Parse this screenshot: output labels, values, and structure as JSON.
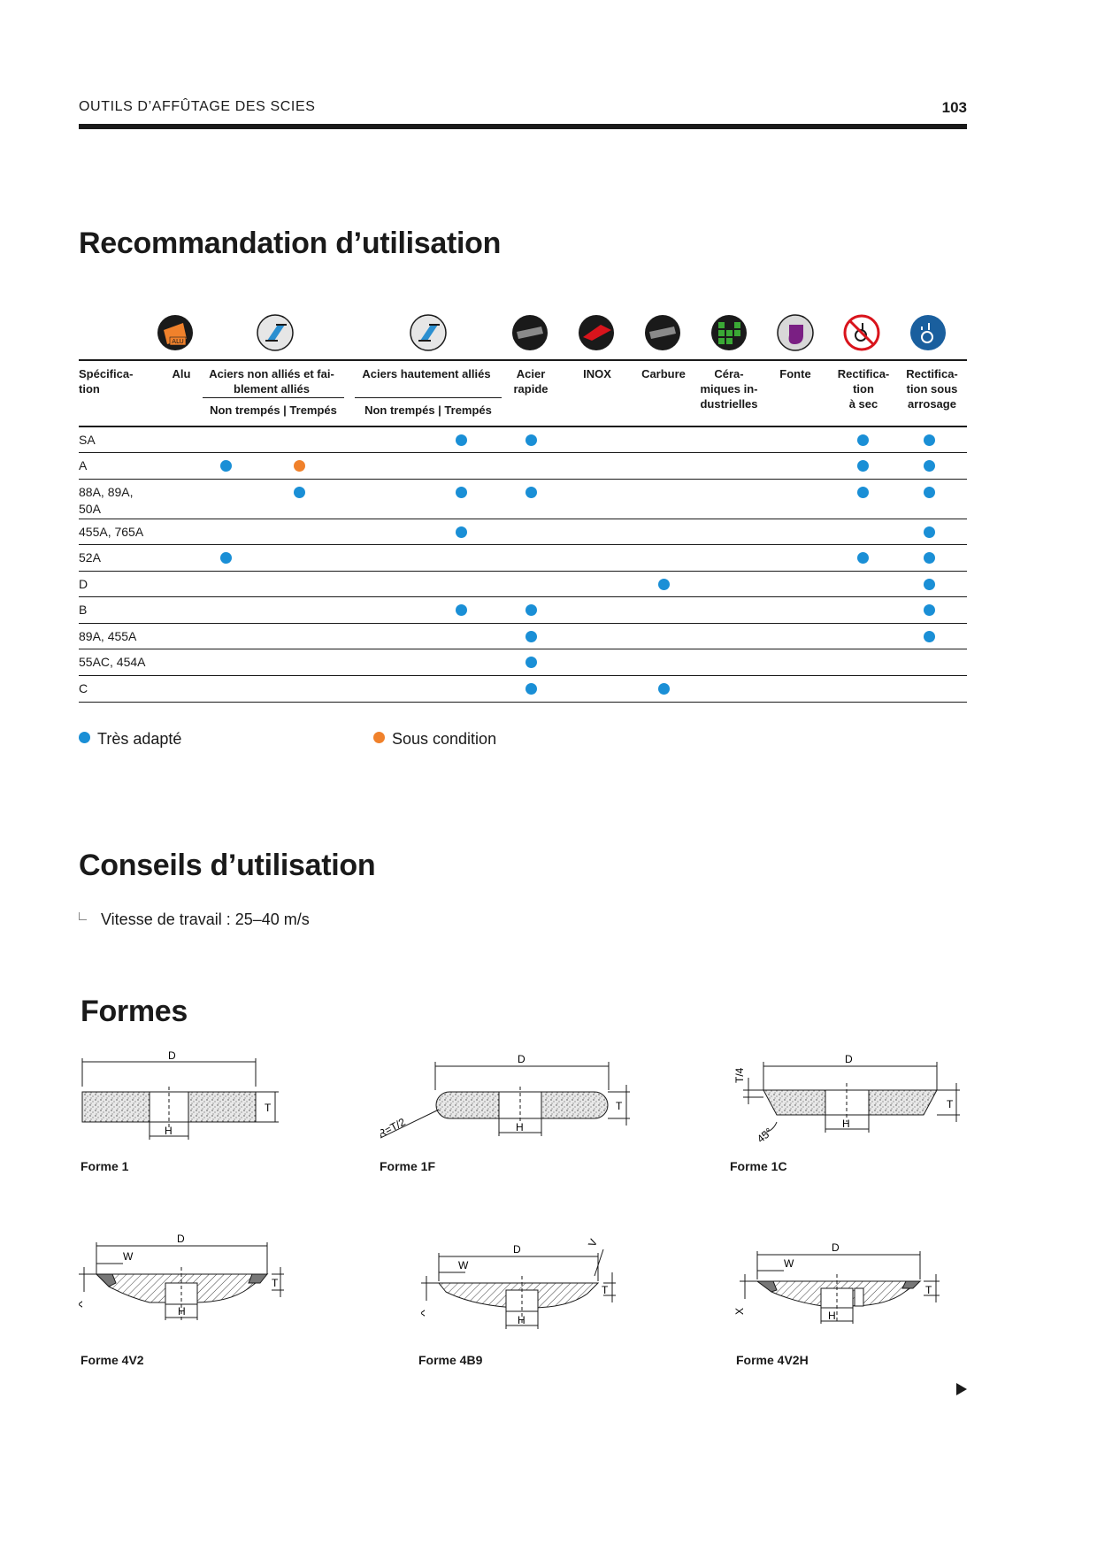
{
  "header": {
    "title": "OUTILS D’AFFÛTAGE DES SCIES",
    "page_number": "103"
  },
  "sections": {
    "recommandation": "Recommandation d’utilisation",
    "conseils": "Conseils d’utilisation",
    "formes": "Formes"
  },
  "colors": {
    "tres_adapte": "#1a8fd6",
    "sous_condition": "#f0812b"
  },
  "table": {
    "columns": [
      {
        "label": "Spécifica-\ntion",
        "icon": ""
      },
      {
        "label": "Alu",
        "icon": "alu-icon"
      },
      {
        "label": "Aciers non alliés et fai-\nblement alliés",
        "icon": "steel-beam-icon",
        "sub": "Non trempés | Trempés"
      },
      {
        "label": "Aciers hautement alliés",
        "icon": "steel-beam-icon",
        "sub": "Non trempés | Trempés"
      },
      {
        "label": "Acier\nrapide",
        "icon": "hss-blade-icon"
      },
      {
        "label": "INOX",
        "icon": "inox-icon"
      },
      {
        "label": "Carbure",
        "icon": "carbide-blade-icon"
      },
      {
        "label": "Céra-\nmiques in-\ndustrielles",
        "icon": "ceramic-tiles-icon"
      },
      {
        "label": "Fonte",
        "icon": "cast-iron-icon"
      },
      {
        "label": "Rectifica-\ntion\nà sec",
        "icon": "dry-grinding-icon"
      },
      {
        "label": "Rectifica-\ntion sous\narrosage",
        "icon": "wet-grinding-icon"
      }
    ],
    "rows": [
      {
        "spec": "SA",
        "marks": [
          [
            "hautement_non",
            "very"
          ],
          [
            "rapide",
            "very"
          ],
          [
            "sec",
            "very"
          ],
          [
            "arrosage",
            "very"
          ]
        ]
      },
      {
        "spec": "A",
        "marks": [
          [
            "nonallie_non",
            "very"
          ],
          [
            "nonallie_tr",
            "cond"
          ],
          [
            "sec",
            "very"
          ],
          [
            "arrosage",
            "very"
          ]
        ]
      },
      {
        "spec": "88A, 89A,\n50A",
        "marks": [
          [
            "nonallie_tr",
            "very"
          ],
          [
            "hautement_non",
            "very"
          ],
          [
            "rapide",
            "very"
          ],
          [
            "sec",
            "very"
          ],
          [
            "arrosage",
            "very"
          ]
        ]
      },
      {
        "spec": "455A, 765A",
        "marks": [
          [
            "hautement_non",
            "very"
          ],
          [
            "arrosage",
            "very"
          ]
        ]
      },
      {
        "spec": "52A",
        "marks": [
          [
            "nonallie_non",
            "very"
          ],
          [
            "sec",
            "very"
          ],
          [
            "arrosage",
            "very"
          ]
        ]
      },
      {
        "spec": "D",
        "marks": [
          [
            "carbure",
            "very"
          ],
          [
            "arrosage",
            "very"
          ]
        ]
      },
      {
        "spec": "B",
        "marks": [
          [
            "hautement_non",
            "very"
          ],
          [
            "rapide",
            "very"
          ],
          [
            "arrosage",
            "very"
          ]
        ]
      },
      {
        "spec": "89A, 455A",
        "marks": [
          [
            "rapide",
            "very"
          ],
          [
            "arrosage",
            "very"
          ]
        ]
      },
      {
        "spec": "55AC, 454A",
        "marks": [
          [
            "rapide",
            "very"
          ]
        ]
      },
      {
        "spec": "C",
        "marks": [
          [
            "rapide",
            "very"
          ],
          [
            "carbure",
            "very"
          ]
        ]
      }
    ]
  },
  "legend": {
    "tres_adapte": "Très adapté",
    "sous_condition": "Sous condition"
  },
  "conseils": {
    "vitesse": "Vitesse de travail : 25–40 m/s"
  },
  "formes": [
    "Forme 1",
    "Forme 1F",
    "Forme 1C",
    "Forme 4V2",
    "Forme 4B9",
    "Forme 4V2H"
  ],
  "dimension_labels": {
    "D": "D",
    "H": "H",
    "T": "T",
    "W": "W",
    "X": "X",
    "V": "V",
    "R": "R=T/2",
    "T4": "T/4",
    "angle": "45°"
  }
}
